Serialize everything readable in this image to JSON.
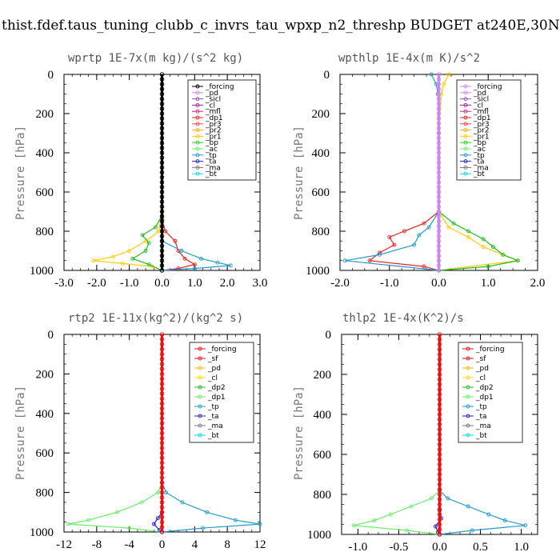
{
  "figure_title": "thist.fdef.taus_tuning_clubb_c_invrs_tau_wpxp_n2_threshp  BUDGET at240E,30N",
  "colors": {
    "forcing": "#000000",
    "sf": "#ee1111",
    "pd": "#cc88ee",
    "sicl": "#8855cc",
    "cl": "#992299",
    "mfl": "#cc2288",
    "dp1": "#ee2222",
    "dp2": "#22bb22",
    "pr3": "#ee4444",
    "pr2": "#ffaa00",
    "pr1": "#ffcc00",
    "bp": "#22cc22",
    "ac": "#66ee66",
    "tp": "#2299cc",
    "ta": "#2222cc",
    "ma": "#777777",
    "bt": "#00dddd",
    "cl_yellow": "#ffd700",
    "pd_orange": "#ffbb00"
  },
  "chart_data": [
    {
      "type": "line",
      "title": "wprtp  1E-7x(m kg)/(s^2 kg)",
      "ylabel": "Pressure [hPa]",
      "xlim": [
        -3.0,
        3.0
      ],
      "ylim": [
        1000,
        0
      ],
      "xticks": [
        "-3.0",
        "-2.0",
        "-1.0",
        "0.0",
        "1.0",
        "2.0",
        "3.0"
      ],
      "xtick_values": [
        -3,
        -2,
        -1,
        0,
        1,
        2,
        3
      ],
      "yticks": [
        "0",
        "200",
        "400",
        "600",
        "800",
        "1000"
      ],
      "ytick_values": [
        0,
        200,
        400,
        600,
        800,
        1000
      ],
      "legend": [
        "_forcing",
        "_pd",
        "_sicl",
        "_cl",
        "_mfl",
        "_dp1",
        "_pr3",
        "_pr2",
        "_pr1",
        "_bp",
        "_ac",
        "_tp",
        "_ta",
        "_ma",
        "_bt"
      ],
      "legend_colors": [
        "#000000",
        "#cc88ee",
        "#8855cc",
        "#992299",
        "#cc2288",
        "#ee2222",
        "#ee4444",
        "#ffaa00",
        "#ffcc00",
        "#22cc22",
        "#66ee66",
        "#2299cc",
        "#2222cc",
        "#777777",
        "#00dddd"
      ],
      "legend_position": "top-right",
      "series": [
        {
          "name": "_pr2",
          "color": "#ffcc00",
          "p": [
            700,
            800,
            850,
            900,
            930,
            950,
            965,
            980,
            1000
          ],
          "x": [
            0,
            -0.1,
            -0.5,
            -1.0,
            -1.5,
            -2.1,
            -1.2,
            -0.3,
            0
          ]
        },
        {
          "name": "_bp",
          "color": "#22bb22",
          "p": [
            720,
            780,
            820,
            860,
            900,
            940,
            970,
            1000
          ],
          "x": [
            0,
            -0.2,
            -0.6,
            -0.4,
            -0.5,
            -0.9,
            -0.4,
            0
          ]
        },
        {
          "name": "_dp1",
          "color": "#ee2222",
          "p": [
            740,
            800,
            850,
            900,
            940,
            970,
            990,
            1000
          ],
          "x": [
            0,
            0.1,
            0.4,
            0.5,
            0.7,
            1.0,
            0.5,
            0
          ]
        },
        {
          "name": "_tp",
          "color": "#2299cc",
          "p": [
            850,
            900,
            940,
            960,
            975,
            990,
            1000
          ],
          "x": [
            0,
            0.6,
            1.2,
            1.7,
            2.1,
            1.0,
            0
          ]
        },
        {
          "name": "_forcing",
          "color": "#000000",
          "p": [
            0,
            1000
          ],
          "x": [
            0,
            0
          ]
        }
      ]
    },
    {
      "type": "line",
      "title": "wpthlp  1E-4x(m K)/s^2",
      "ylabel": "Pressure [hPa]",
      "xlim": [
        -2.0,
        2.0
      ],
      "ylim": [
        1000,
        0
      ],
      "xticks": [
        "-2.0",
        "-1.0",
        "0.0",
        "1.0",
        "2.0"
      ],
      "xtick_values": [
        -2,
        -1,
        0,
        1,
        2
      ],
      "yticks": [
        "0",
        "200",
        "400",
        "600",
        "800",
        "1000"
      ],
      "ytick_values": [
        0,
        200,
        400,
        600,
        800,
        1000
      ],
      "legend": [
        "_forcing",
        "_pd",
        "_sicl",
        "_cl",
        "_mfl",
        "_dp1",
        "_pr3",
        "_pr2",
        "_pr1",
        "_bp",
        "_ac",
        "_tp",
        "_ta",
        "_ma",
        "_bt"
      ],
      "legend_colors": [
        "#cc88ee",
        "#cc88ee",
        "#8855cc",
        "#992299",
        "#cc2288",
        "#ee2222",
        "#ee4444",
        "#ffaa00",
        "#ffcc00",
        "#22cc22",
        "#66ee66",
        "#2299cc",
        "#2222cc",
        "#777777",
        "#00dddd"
      ],
      "legend_position": "top-right",
      "series": [
        {
          "name": "_pr2",
          "color": "#ffcc00",
          "p": [
            0,
            50,
            100,
            300,
            700,
            780,
            830,
            880,
            920,
            950,
            1000
          ],
          "x": [
            0.2,
            0.1,
            0.05,
            0,
            0,
            0.2,
            0.6,
            0.9,
            1.3,
            1.6,
            0
          ]
        },
        {
          "name": "_bp",
          "color": "#22bb22",
          "p": [
            700,
            760,
            800,
            840,
            880,
            920,
            950,
            980,
            1000
          ],
          "x": [
            0,
            0.3,
            0.6,
            0.9,
            1.1,
            1.3,
            1.6,
            1.0,
            0
          ]
        },
        {
          "name": "_dp1",
          "color": "#ee2222",
          "p": [
            700,
            760,
            800,
            830,
            870,
            910,
            950,
            980,
            1000
          ],
          "x": [
            0,
            -0.3,
            -0.7,
            -1.0,
            -0.9,
            -1.2,
            -1.4,
            -0.3,
            0
          ]
        },
        {
          "name": "_tp",
          "color": "#2299cc",
          "p": [
            0,
            50,
            100,
            300,
            700,
            780,
            820,
            870,
            920,
            950,
            1000
          ],
          "x": [
            -0.15,
            -0.05,
            -0.02,
            0,
            0,
            -0.2,
            -0.4,
            -0.5,
            -1.2,
            -1.9,
            0
          ]
        },
        {
          "name": "_forcing",
          "color": "#cc88ee",
          "p": [
            0,
            1000
          ],
          "x": [
            0,
            0
          ]
        }
      ]
    },
    {
      "type": "line",
      "title": "rtp2  1E-11x(kg^2)/(kg^2 s)",
      "ylabel": "Pressure [hPa]",
      "xlim": [
        -12,
        12
      ],
      "ylim": [
        1000,
        0
      ],
      "xticks": [
        "-12",
        "-8",
        "-4",
        "0",
        "4",
        "8",
        "12"
      ],
      "xtick_values": [
        -12,
        -8,
        -4,
        0,
        4,
        8,
        12
      ],
      "yticks": [
        "0",
        "200",
        "400",
        "600",
        "800",
        "1000"
      ],
      "ytick_values": [
        0,
        200,
        400,
        600,
        800,
        1000
      ],
      "legend": [
        "_forcing",
        "_sf",
        "_pd",
        "_cl",
        "_dp2",
        "_dp1",
        "_tp",
        "_ta",
        "_ma",
        "_bt"
      ],
      "legend_colors": [
        "#ee1111",
        "#ee1111",
        "#ffbb00",
        "#ffd700",
        "#22bb22",
        "#66ee66",
        "#2299cc",
        "#2222cc",
        "#777777",
        "#00dddd"
      ],
      "legend_position": "top-right",
      "series": [
        {
          "name": "_dp1",
          "color": "#66ee66",
          "p": [
            750,
            800,
            850,
            900,
            940,
            960,
            980,
            1000
          ],
          "x": [
            0,
            -0.5,
            -2.5,
            -5.5,
            -9.0,
            -11.5,
            -4.0,
            0
          ]
        },
        {
          "name": "_tp",
          "color": "#2299cc",
          "p": [
            750,
            800,
            850,
            900,
            940,
            960,
            980,
            1000
          ],
          "x": [
            0,
            0.5,
            2.5,
            5.5,
            9.0,
            12.0,
            5.0,
            0
          ]
        },
        {
          "name": "_ta",
          "color": "#2222cc",
          "p": [
            900,
            930,
            960,
            990,
            1000
          ],
          "x": [
            0,
            -0.5,
            -1.0,
            -0.3,
            0
          ]
        },
        {
          "name": "_forcing",
          "color": "#ee1111",
          "p": [
            0,
            1000
          ],
          "x": [
            0,
            0
          ]
        }
      ]
    },
    {
      "type": "line",
      "title": "thlp2  1E-4x(K^2)/s",
      "ylabel": "Pressure [hPa]",
      "xlim": [
        -1.2,
        1.2
      ],
      "ylim": [
        1000,
        0
      ],
      "xticks": [
        "-1.0",
        "-0.5",
        "0.0",
        "0.5",
        "1.0"
      ],
      "xtick_values": [
        -1.0,
        -0.5,
        0.0,
        0.5,
        1.0
      ],
      "yticks": [
        "0",
        "200",
        "400",
        "600",
        "800",
        "1000"
      ],
      "ytick_values": [
        0,
        200,
        400,
        600,
        800,
        1000
      ],
      "legend": [
        "_forcing",
        "_sf",
        "_pd",
        "_cl",
        "_dp2",
        "_dp1",
        "_tp",
        "_ta",
        "_ma",
        "_bt"
      ],
      "legend_colors": [
        "#ee1111",
        "#ee1111",
        "#ffbb00",
        "#ffd700",
        "#22bb22",
        "#66ee66",
        "#2299cc",
        "#2222cc",
        "#777777",
        "#00dddd"
      ],
      "legend_position": "top-right",
      "series": [
        {
          "name": "_dp1",
          "color": "#66ee66",
          "p": [
            780,
            820,
            860,
            900,
            930,
            955,
            980,
            1000
          ],
          "x": [
            0,
            -0.1,
            -0.35,
            -0.6,
            -0.8,
            -1.05,
            -0.4,
            0
          ]
        },
        {
          "name": "_tp",
          "color": "#2299cc",
          "p": [
            780,
            820,
            860,
            900,
            930,
            955,
            980,
            1000
          ],
          "x": [
            0,
            0.1,
            0.35,
            0.6,
            0.8,
            1.05,
            0.4,
            0
          ]
        },
        {
          "name": "_ta",
          "color": "#2222cc",
          "p": [
            880,
            920,
            960,
            990,
            1000
          ],
          "x": [
            0,
            0.02,
            -0.05,
            -0.02,
            0
          ]
        },
        {
          "name": "_forcing",
          "color": "#ee1111",
          "p": [
            0,
            1000
          ],
          "x": [
            0,
            0
          ]
        }
      ]
    }
  ]
}
